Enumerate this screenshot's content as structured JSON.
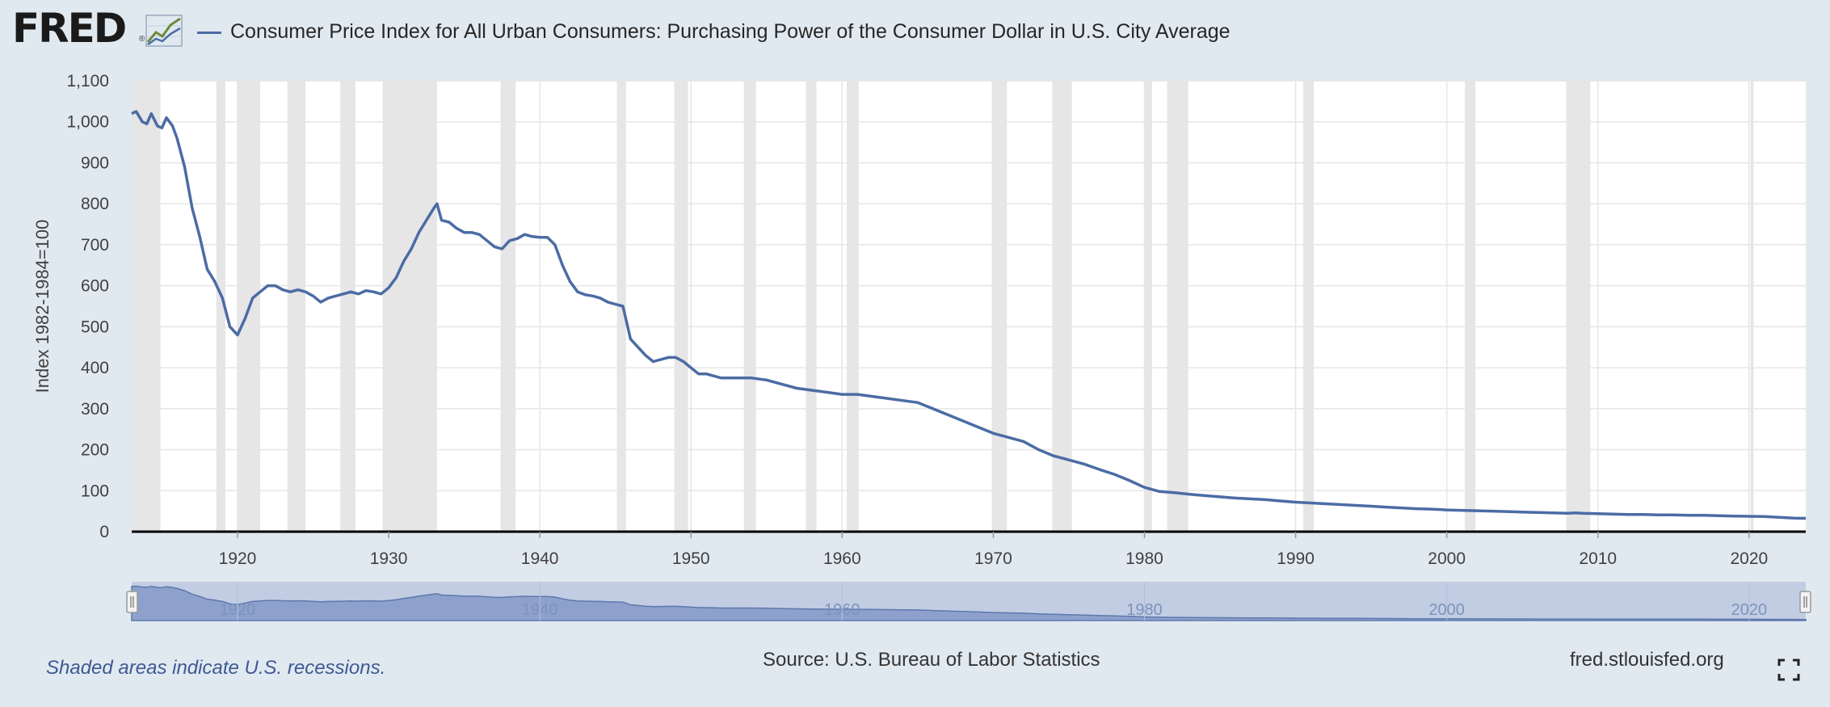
{
  "header": {
    "logo_text": "FRED",
    "logo_registered": "®",
    "series_title": "Consumer Price Index for All Urban Consumers: Purchasing Power of the Consumer Dollar in U.S. City Average"
  },
  "footer": {
    "recession_note": "Shaded areas indicate U.S. recessions.",
    "source": "Source: U.S. Bureau of Labor Statistics",
    "site": "fred.stlouisfed.org"
  },
  "colors": {
    "series_line": "#4b6ca4",
    "recession_shading": "#e6e6e6",
    "navigator_fill": "#8599c8",
    "navigator_background": "#c2cde3"
  },
  "icons": {
    "logo_mark": "line-chart-icon",
    "fullscreen": "fullscreen-icon"
  },
  "chart_data": {
    "type": "line",
    "title": "Consumer Price Index for All Urban Consumers: Purchasing Power of the Consumer Dollar in U.S. City Average",
    "xlabel": "",
    "ylabel": "Index 1982-1984=100",
    "xlim": [
      1913,
      2023.75
    ],
    "ylim": [
      0,
      1100
    ],
    "y_ticks": [
      "0",
      "100",
      "200",
      "300",
      "400",
      "500",
      "600",
      "700",
      "800",
      "900",
      "1,000",
      "1,100"
    ],
    "x_ticks": [
      "1920",
      "1930",
      "1940",
      "1950",
      "1960",
      "1970",
      "1980",
      "1990",
      "2000",
      "2010",
      "2020"
    ],
    "navigator_ticks": [
      "1920",
      "1940",
      "1960",
      "1980",
      "2000",
      "2020"
    ],
    "grid": true,
    "recessions": [
      [
        1913.0,
        1914.9
      ],
      [
        1918.6,
        1919.2
      ],
      [
        1920.0,
        1921.5
      ],
      [
        1923.3,
        1924.5
      ],
      [
        1926.8,
        1927.8
      ],
      [
        1929.6,
        1933.2
      ],
      [
        1937.4,
        1938.4
      ],
      [
        1945.1,
        1945.7
      ],
      [
        1948.9,
        1949.8
      ],
      [
        1953.5,
        1954.3
      ],
      [
        1957.6,
        1958.3
      ],
      [
        1960.3,
        1961.1
      ],
      [
        1969.9,
        1970.9
      ],
      [
        1973.9,
        1975.2
      ],
      [
        1980.0,
        1980.5
      ],
      [
        1981.5,
        1982.9
      ],
      [
        1990.5,
        1991.2
      ],
      [
        2001.2,
        2001.9
      ],
      [
        2007.9,
        2009.5
      ],
      [
        2020.1,
        2020.3
      ]
    ],
    "series": [
      {
        "name": "Consumer Price Index for All Urban Consumers: Purchasing Power of the Consumer Dollar in U.S. City Average",
        "x": [
          1913.0,
          1913.3,
          1913.7,
          1914.0,
          1914.3,
          1914.7,
          1915.0,
          1915.3,
          1915.7,
          1916.0,
          1916.5,
          1917.0,
          1917.5,
          1918.0,
          1918.5,
          1919.0,
          1919.5,
          1920.0,
          1920.5,
          1921.0,
          1921.5,
          1922.0,
          1922.5,
          1923.0,
          1923.5,
          1924.0,
          1924.5,
          1925.0,
          1925.5,
          1926.0,
          1926.5,
          1927.0,
          1927.5,
          1928.0,
          1928.5,
          1929.0,
          1929.5,
          1930.0,
          1930.5,
          1931.0,
          1931.5,
          1932.0,
          1932.5,
          1933.0,
          1933.2,
          1933.5,
          1934.0,
          1934.5,
          1935.0,
          1935.5,
          1936.0,
          1936.5,
          1937.0,
          1937.5,
          1938.0,
          1938.5,
          1939.0,
          1939.5,
          1940.0,
          1940.5,
          1941.0,
          1941.5,
          1942.0,
          1942.5,
          1943.0,
          1943.5,
          1944.0,
          1944.5,
          1945.0,
          1945.5,
          1946.0,
          1946.5,
          1947.0,
          1947.5,
          1948.0,
          1948.5,
          1949.0,
          1949.5,
          1950.0,
          1950.5,
          1951.0,
          1952.0,
          1953.0,
          1954.0,
          1955.0,
          1956.0,
          1957.0,
          1958.0,
          1959.0,
          1960.0,
          1961.0,
          1962.0,
          1963.0,
          1964.0,
          1965.0,
          1966.0,
          1967.0,
          1968.0,
          1969.0,
          1970.0,
          1971.0,
          1972.0,
          1973.0,
          1974.0,
          1975.0,
          1976.0,
          1977.0,
          1978.0,
          1979.0,
          1980.0,
          1981.0,
          1982.0,
          1983.0,
          1984.0,
          1985.0,
          1986.0,
          1987.0,
          1988.0,
          1989.0,
          1990.0,
          1991.0,
          1992.0,
          1993.0,
          1994.0,
          1995.0,
          1996.0,
          1997.0,
          1998.0,
          1999.0,
          2000.0,
          2001.0,
          2002.0,
          2003.0,
          2004.0,
          2005.0,
          2006.0,
          2007.0,
          2008.0,
          2008.5,
          2009.0,
          2010.0,
          2011.0,
          2012.0,
          2013.0,
          2014.0,
          2015.0,
          2016.0,
          2017.0,
          2018.0,
          2019.0,
          2020.0,
          2021.0,
          2022.0,
          2023.0,
          2023.75
        ],
        "values": [
          1020,
          1025,
          1000,
          995,
          1020,
          990,
          985,
          1010,
          990,
          960,
          890,
          790,
          720,
          640,
          610,
          570,
          500,
          480,
          520,
          570,
          585,
          600,
          600,
          590,
          585,
          590,
          585,
          575,
          560,
          570,
          575,
          580,
          585,
          580,
          588,
          585,
          580,
          595,
          620,
          660,
          690,
          730,
          760,
          790,
          800,
          760,
          755,
          740,
          730,
          730,
          725,
          710,
          695,
          690,
          710,
          715,
          725,
          720,
          718,
          718,
          700,
          650,
          610,
          585,
          578,
          575,
          570,
          560,
          555,
          550,
          470,
          450,
          430,
          415,
          420,
          425,
          425,
          415,
          400,
          385,
          385,
          375,
          375,
          375,
          370,
          360,
          350,
          345,
          340,
          335,
          335,
          330,
          325,
          320,
          315,
          300,
          285,
          270,
          255,
          240,
          230,
          220,
          200,
          185,
          175,
          165,
          152,
          140,
          125,
          108,
          98,
          95,
          91,
          88,
          85,
          82,
          80,
          78,
          75,
          72,
          70,
          68,
          66,
          64,
          62,
          60,
          58,
          56,
          55,
          53,
          52,
          51,
          50,
          49,
          48,
          47,
          46,
          45,
          46,
          45,
          44,
          43,
          42,
          42,
          41,
          41,
          40,
          40,
          39,
          38,
          37.5,
          37,
          35,
          33,
          32.5
        ]
      }
    ]
  }
}
